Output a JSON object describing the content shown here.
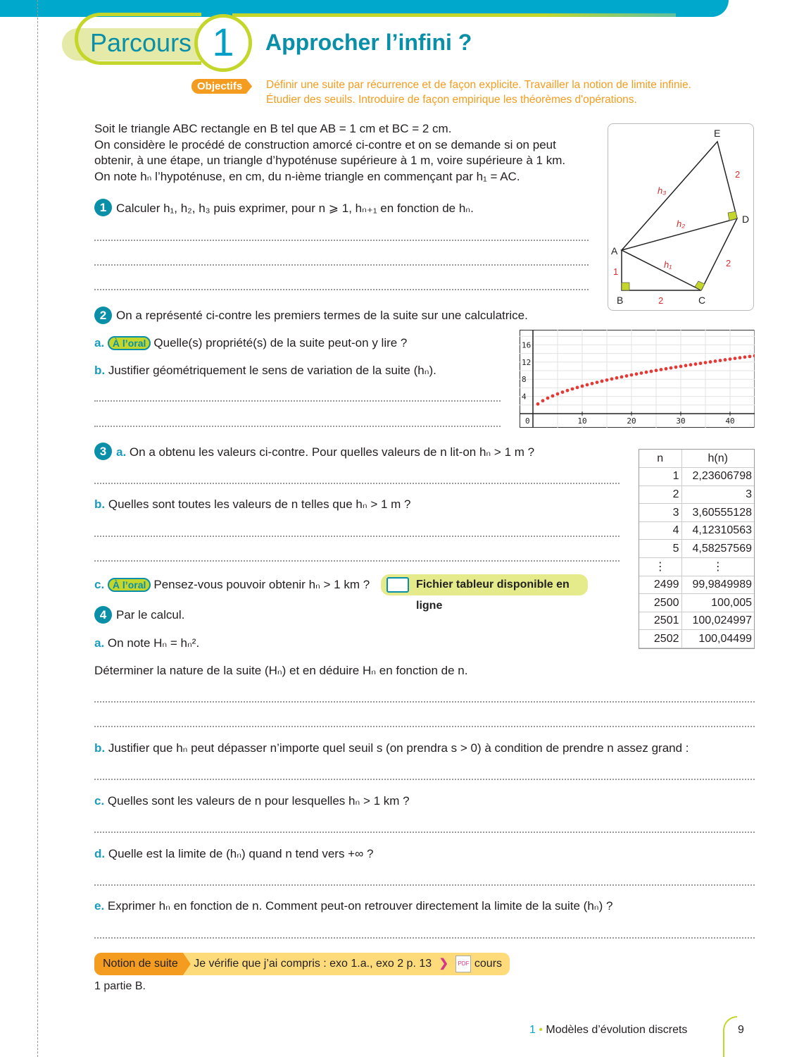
{
  "header": {
    "parcours_label": "Parcours",
    "parcours_number": "1",
    "title": "Approcher l’infini ?",
    "objectifs_label": "Objectifs",
    "objectifs_lines": [
      "Définir une suite par récurrence et de façon explicite. Travailler la notion de limite infinie.",
      "Étudier des seuils. Introduire de façon empirique les théorèmes d'opérations."
    ]
  },
  "intro": [
    "Soit le triangle ABC rectangle en B tel que AB = 1 cm et BC = 2 cm.",
    "On considère le procédé de construction amorcé ci-contre et on se demande si on peut",
    "obtenir, à une étape, un triangle d’hypoténuse supérieure à 1 m, voire supérieure à 1 km.",
    "On note hₙ l’hypoténuse, en cm, du n-ième triangle en commençant par h₁ = AC."
  ],
  "figure": {
    "points": [
      "A",
      "B",
      "C",
      "D",
      "E"
    ],
    "side_labels": [
      "1",
      "2",
      "2",
      "2"
    ],
    "hyp_labels": [
      "h₁",
      "h₂",
      "h₃"
    ]
  },
  "q1": {
    "num": "1",
    "text": "Calculer h₁, h₂, h₃ puis exprimer, pour n ⩾ 1, hₙ₊₁ en fonction de hₙ."
  },
  "q2": {
    "num": "2",
    "text": "On a représenté ci-contre les premiers termes de la suite sur une calculatrice.",
    "a_label": "a.",
    "oral": "À l’oral",
    "a_text": "Quelle(s) propriété(s) de la suite peut-on y lire ?",
    "b_label": "b.",
    "b_text": "Justifier géométriquement le sens de variation de la suite (hₙ)."
  },
  "calculator_plot": {
    "type": "scatter",
    "xlim": [
      0,
      45
    ],
    "ylim": [
      0,
      18
    ],
    "x_ticks": [
      "10",
      "20",
      "30",
      "40"
    ],
    "y_ticks": [
      "4",
      "8",
      "12",
      "16"
    ],
    "origin_label": "0",
    "color": "#e53935",
    "grid": true,
    "x": [
      1,
      2,
      3,
      4,
      5,
      6,
      7,
      8,
      9,
      10,
      11,
      12,
      13,
      14,
      15,
      16,
      17,
      18,
      19,
      20,
      21,
      22,
      23,
      24,
      25,
      26,
      27,
      28,
      29,
      30,
      31,
      32,
      33,
      34,
      35,
      36,
      37,
      38,
      39,
      40,
      41,
      42,
      43,
      44,
      45
    ],
    "y": [
      2.24,
      3,
      3.61,
      4.12,
      4.58,
      5,
      5.39,
      5.74,
      6.08,
      6.4,
      6.71,
      7,
      7.28,
      7.55,
      7.81,
      8.06,
      8.31,
      8.54,
      8.77,
      9,
      9.22,
      9.43,
      9.64,
      9.85,
      10.05,
      10.25,
      10.44,
      10.63,
      10.82,
      11,
      11.18,
      11.36,
      11.53,
      11.7,
      11.87,
      12.04,
      12.21,
      12.37,
      12.53,
      12.69,
      12.85,
      13,
      13.15,
      13.3,
      13.45
    ]
  },
  "q3": {
    "num": "3",
    "a_label": "a.",
    "a_text": "On a obtenu les valeurs ci-contre. Pour quelles valeurs de n lit-on hₙ > 1 m ?",
    "b_label": "b.",
    "b_text": "Quelles sont toutes les valeurs de n telles que hₙ > 1 m ?",
    "c_label": "c.",
    "oral": "À l’oral",
    "c_text": "Pensez-vous pouvoir obtenir hₙ > 1 km ?",
    "fichier": "Fichier tableur disponible en ligne"
  },
  "table": {
    "headers": [
      "n",
      "h(n)"
    ],
    "rows": [
      [
        "1",
        "2,23606798"
      ],
      [
        "2",
        "3"
      ],
      [
        "3",
        "3,60555128"
      ],
      [
        "4",
        "4,12310563"
      ],
      [
        "5",
        "4,58257569"
      ],
      [
        "⋮",
        "⋮"
      ],
      [
        "2499",
        "99,9849989"
      ],
      [
        "2500",
        "100,005"
      ],
      [
        "2501",
        "100,024997"
      ],
      [
        "2502",
        "100,04499"
      ]
    ]
  },
  "q4": {
    "num": "4",
    "text": "Par le calcul.",
    "a_label": "a.",
    "a_text": "On note Hₙ = hₙ².",
    "a_text2": "Déterminer la nature de la suite (Hₙ) et en déduire Hₙ en fonction de n.",
    "b_label": "b.",
    "b_text": "Justifier que hₙ peut dépasser n’importe quel seuil s (on prendra s > 0) à condition de prendre n assez grand :",
    "c_label": "c.",
    "c_text": "Quelles sont les valeurs de n pour lesquelles hₙ > 1 km ?",
    "d_label": "d.",
    "d_text": "Quelle est la limite de (hₙ) quand n tend vers +∞ ?",
    "e_label": "e.",
    "e_text": "Exprimer hₙ en fonction de n. Comment peut-on retrouver directement la limite de la suite (hₙ) ?"
  },
  "banner": {
    "notion": "Notion de suite",
    "verify": "Je vérifie que j’ai compris : exo 1.a., exo 2 p. 13",
    "pdf": "PDF",
    "cours": "cours 1 partie B."
  },
  "footer": {
    "chapter_num": "1",
    "chapter": "Modèles d’évolution discrets",
    "page": "9"
  }
}
